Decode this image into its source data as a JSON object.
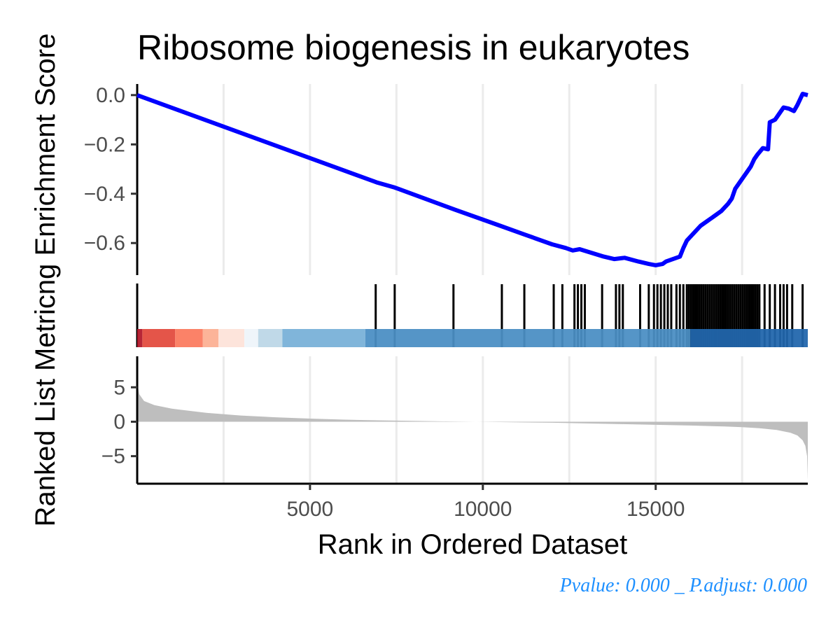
{
  "chart_data": {
    "type": "line",
    "title": "Ribosome biogenesis in eukaryotes",
    "xlabel": "Rank in Ordered Dataset",
    "ylabel_top": "Enrichment Score",
    "ylabel_bottom": "Ranked List Metric",
    "ylabel_combined": "Ranked List Metricng Enrichment Score",
    "xlim": [
      1,
      19400
    ],
    "x_ticks": [
      5000,
      10000,
      15000
    ],
    "x_tick_labels": [
      "5000",
      "10000",
      "15000"
    ],
    "es_ylim": [
      -0.73,
      0.045
    ],
    "es_ticks": [
      0.0,
      -0.2,
      -0.4,
      -0.6
    ],
    "es_tick_labels": [
      "0.0",
      "−0.2",
      "−0.4",
      "−0.6"
    ],
    "metric_ylim": [
      -9,
      9.5
    ],
    "metric_ticks": [
      5,
      0,
      -5
    ],
    "metric_tick_labels": [
      "5",
      "0",
      "−5"
    ],
    "running_es": {
      "name": "Enrichment Score",
      "color": "#0000ff",
      "x": [
        1,
        6850,
        6950,
        7450,
        7550,
        9200,
        10500,
        11200,
        12000,
        12400,
        12600,
        12800,
        13500,
        13800,
        14100,
        14500,
        14800,
        15000,
        15200,
        15300,
        15500,
        15700,
        15800,
        15900,
        16000,
        16100,
        16300,
        16500,
        16700,
        16900,
        17100,
        17200,
        17300,
        17450,
        17600,
        17750,
        17850,
        17950,
        18100,
        18250,
        18300,
        18450,
        18500,
        18600,
        18700,
        18850,
        19000,
        19100,
        19250,
        19400
      ],
      "y": [
        0.0,
        -0.35,
        -0.355,
        -0.375,
        -0.38,
        -0.465,
        -0.53,
        -0.565,
        -0.605,
        -0.62,
        -0.63,
        -0.625,
        -0.655,
        -0.665,
        -0.66,
        -0.675,
        -0.685,
        -0.69,
        -0.685,
        -0.675,
        -0.665,
        -0.655,
        -0.62,
        -0.59,
        -0.575,
        -0.56,
        -0.53,
        -0.51,
        -0.49,
        -0.47,
        -0.44,
        -0.42,
        -0.38,
        -0.35,
        -0.32,
        -0.29,
        -0.26,
        -0.24,
        -0.215,
        -0.22,
        -0.11,
        -0.1,
        -0.09,
        -0.07,
        -0.05,
        -0.055,
        -0.065,
        -0.04,
        0.005,
        0.0
      ]
    },
    "gene_hits": [
      6900,
      7450,
      9150,
      10550,
      11200,
      12050,
      12300,
      12650,
      12750,
      12850,
      12950,
      13450,
      13850,
      13950,
      14050,
      14550,
      14800,
      14950,
      15050,
      15150,
      15250,
      15350,
      15450,
      15600,
      15700,
      15800,
      15900,
      15960,
      16020,
      16080,
      16140,
      16200,
      16260,
      16320,
      16380,
      16440,
      16500,
      16560,
      16620,
      16680,
      16740,
      16800,
      16860,
      16920,
      16980,
      17040,
      17100,
      17160,
      17220,
      17280,
      17340,
      17400,
      17460,
      17520,
      17580,
      17640,
      17700,
      17760,
      17820,
      17880,
      17940,
      18000,
      18150,
      18300,
      18450,
      18600,
      18700,
      18800,
      18950,
      19250
    ],
    "color_bar": {
      "breaks": [
        1,
        150,
        1100,
        1900,
        2350,
        3100,
        3500,
        4200,
        6600,
        16000,
        19400
      ],
      "colors": [
        "#b2182b",
        "#e24a3e",
        "#fb7a5f",
        "#fcaf93",
        "#fde2d9",
        "#eef4fa",
        "#bcd7e7",
        "#78b0d8",
        "#4a8ec4",
        "#2166ac",
        "#08478d"
      ]
    },
    "ranked_metric": {
      "color": "#bebebe",
      "x": [
        1,
        60,
        200,
        500,
        1000,
        2000,
        3000,
        4000,
        5000,
        6000,
        7000,
        8000,
        9000,
        9800,
        10500,
        12000,
        13000,
        14000,
        15000,
        16000,
        17000,
        17500,
        18000,
        18500,
        18900,
        19100,
        19250,
        19330,
        19380,
        19400
      ],
      "y": [
        5.8,
        4.0,
        3.0,
        2.4,
        1.9,
        1.3,
        0.9,
        0.65,
        0.45,
        0.3,
        0.2,
        0.12,
        0.05,
        0.0,
        -0.05,
        -0.15,
        -0.25,
        -0.35,
        -0.45,
        -0.55,
        -0.7,
        -0.8,
        -0.95,
        -1.2,
        -1.6,
        -2.0,
        -2.7,
        -3.5,
        -5.0,
        -8.5
      ]
    },
    "grid": true,
    "legend": "none"
  },
  "footer_text": "Pvalue:  0.000 _ P.adjust: 0.000"
}
